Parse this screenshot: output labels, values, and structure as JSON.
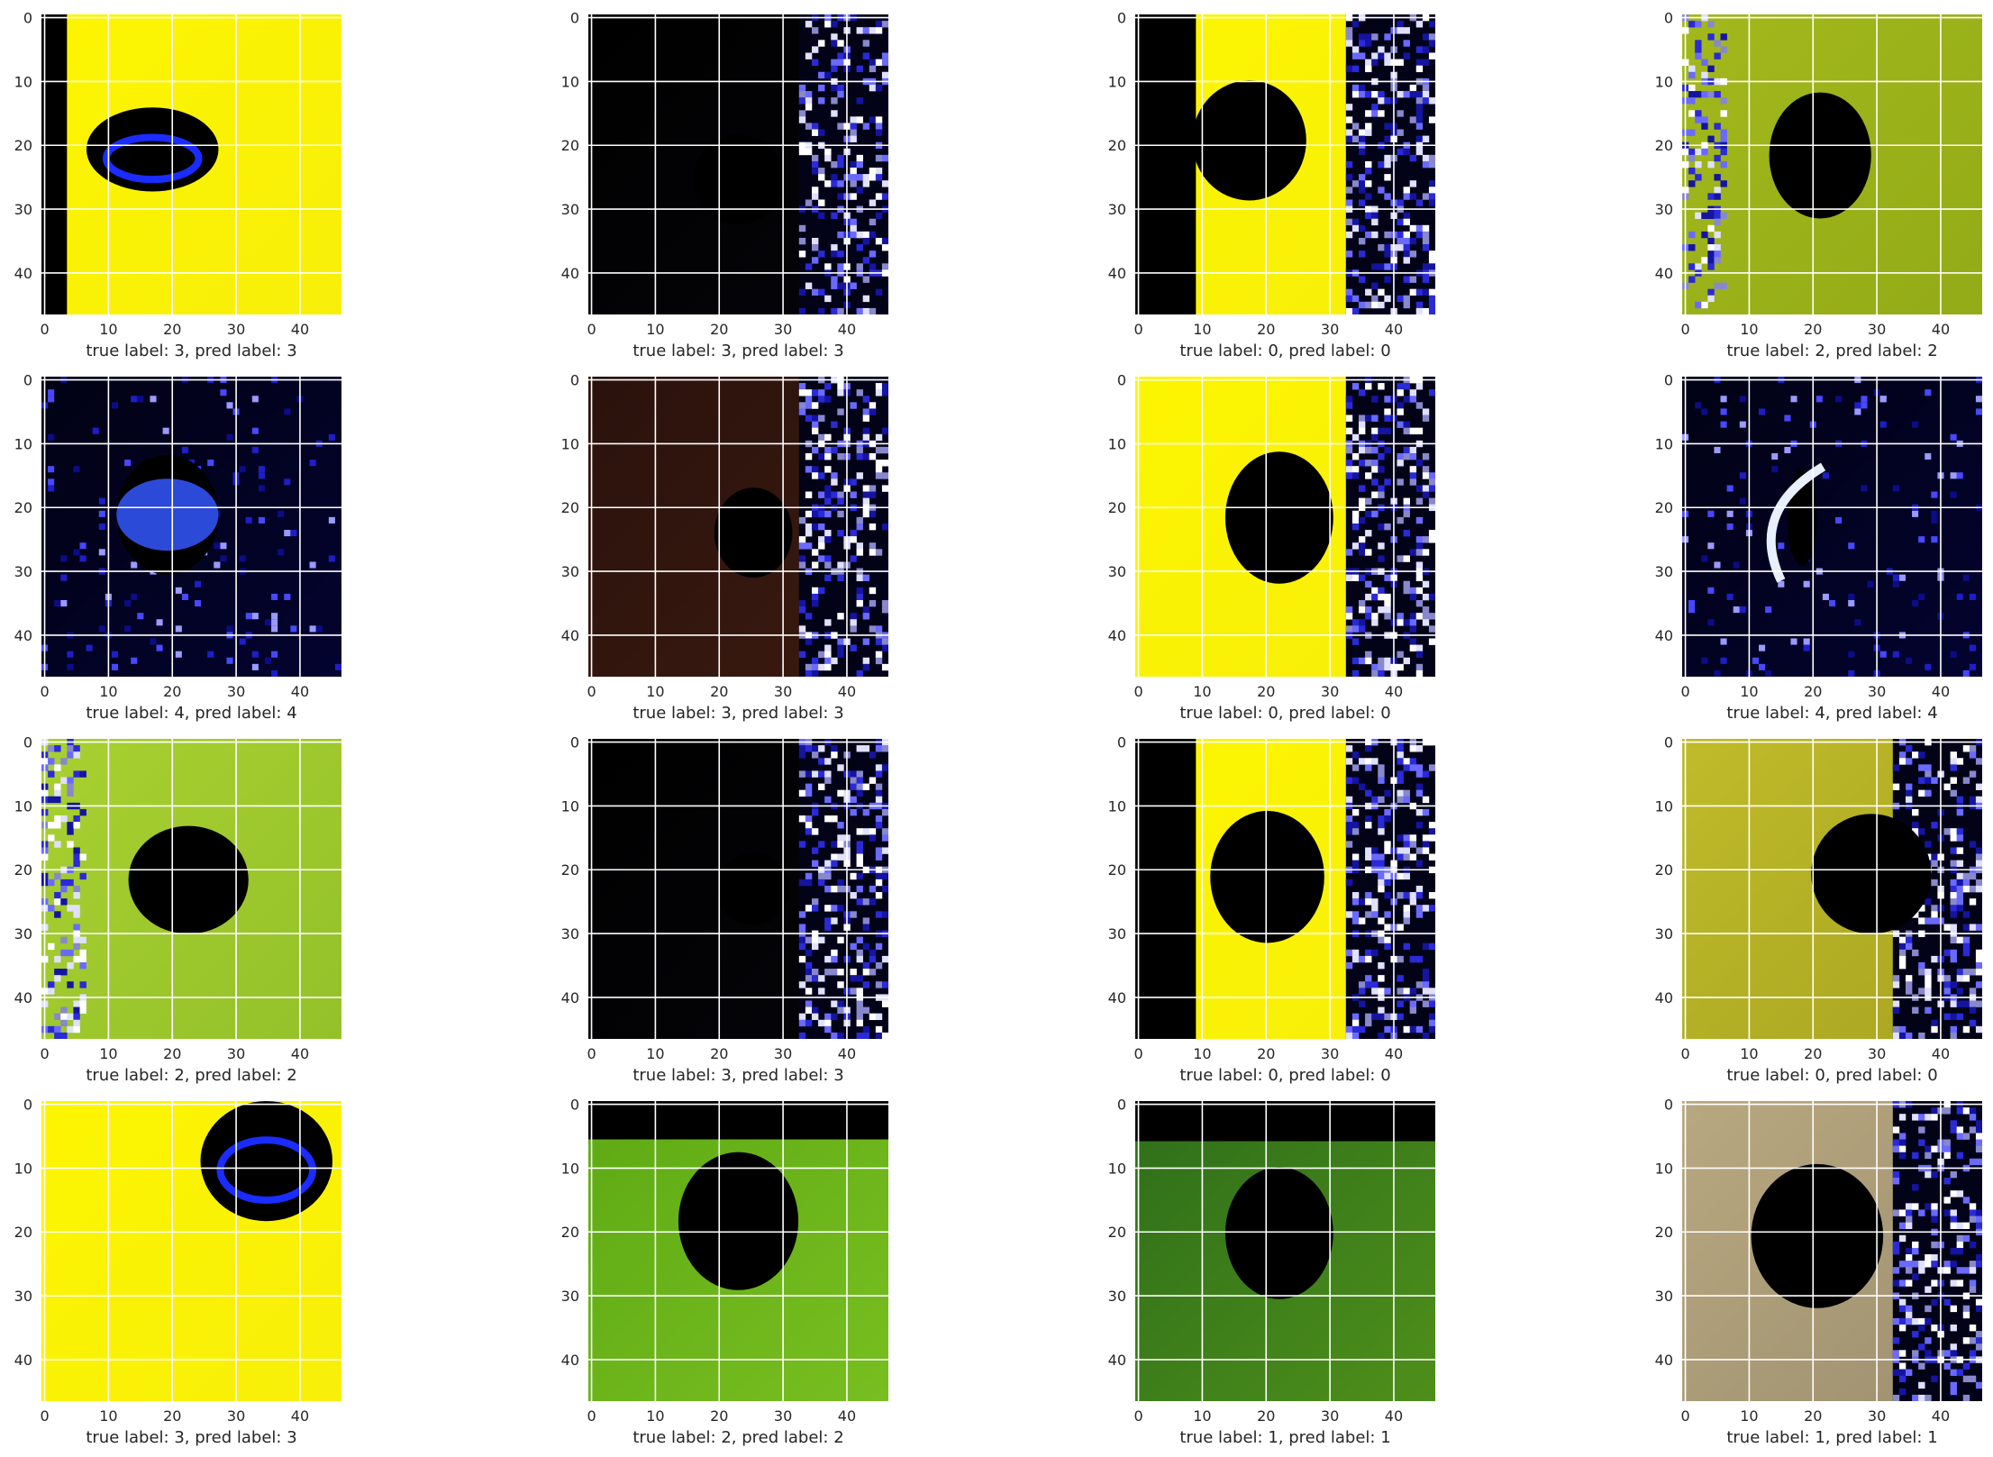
{
  "figure": {
    "rows": 4,
    "cols": 4,
    "panels": [
      {
        "true_label": 3,
        "pred_label": 3,
        "caption": "true label: 3, pred label: 3",
        "style": "yellow",
        "blob": [
          0.37,
          0.45,
          0.22,
          0.14
        ],
        "extra": "blueedge",
        "stripe": "left"
      },
      {
        "true_label": 3,
        "pred_label": 3,
        "caption": "true label: 3, pred label: 3",
        "style": "dark",
        "blob": [
          0.5,
          0.55,
          0.15,
          0.15
        ],
        "extra": "noise-right"
      },
      {
        "true_label": 0,
        "pred_label": 0,
        "caption": "true label: 0, pred label: 0",
        "style": "yellow",
        "blob": [
          0.38,
          0.42,
          0.19,
          0.2
        ],
        "extra": "noise-right",
        "stripe": "left-wide"
      },
      {
        "true_label": 2,
        "pred_label": 2,
        "caption": "true label: 2, pred label: 2",
        "style": "olive",
        "blob": [
          0.46,
          0.47,
          0.17,
          0.21
        ],
        "extra": "stripes-left"
      },
      {
        "true_label": 4,
        "pred_label": 4,
        "caption": "true label: 4, pred label: 4",
        "style": "navy",
        "blob": [
          0.42,
          0.46,
          0.17,
          0.2
        ],
        "extra": "bluefish"
      },
      {
        "true_label": 3,
        "pred_label": 3,
        "caption": "true label: 3, pred label: 3",
        "style": "brown",
        "blob": [
          0.55,
          0.52,
          0.13,
          0.15
        ],
        "extra": "noise-right"
      },
      {
        "true_label": 0,
        "pred_label": 0,
        "caption": "true label: 0, pred label: 0",
        "style": "yellow",
        "blob": [
          0.48,
          0.47,
          0.18,
          0.22
        ],
        "extra": "noise-right"
      },
      {
        "true_label": 4,
        "pred_label": 4,
        "caption": "true label: 4, pred label: 4",
        "style": "navy",
        "blob": [
          0.4,
          0.47,
          0.05,
          0.16
        ],
        "extra": "crescent"
      },
      {
        "true_label": 2,
        "pred_label": 2,
        "caption": "true label: 2, pred label: 2",
        "style": "green",
        "blob": [
          0.49,
          0.47,
          0.2,
          0.18
        ],
        "extra": "stripes-left"
      },
      {
        "true_label": 3,
        "pred_label": 3,
        "caption": "true label: 3, pred label: 3",
        "style": "dark",
        "blob": [
          0.55,
          0.5,
          0.12,
          0.12
        ],
        "extra": "noise-right"
      },
      {
        "true_label": 0,
        "pred_label": 0,
        "caption": "true label: 0, pred label: 0",
        "style": "yellow",
        "blob": [
          0.44,
          0.46,
          0.19,
          0.22
        ],
        "extra": "noise-right",
        "stripe": "left-wide"
      },
      {
        "true_label": 0,
        "pred_label": 0,
        "caption": "true label: 0, pred label: 0",
        "style": "ochre",
        "blob": [
          0.63,
          0.45,
          0.2,
          0.2
        ],
        "extra": "noise-right"
      },
      {
        "true_label": 3,
        "pred_label": 3,
        "caption": "true label: 3, pred label: 3",
        "style": "yellow",
        "blob": [
          0.75,
          0.2,
          0.22,
          0.2
        ],
        "extra": "blueedge"
      },
      {
        "true_label": 2,
        "pred_label": 2,
        "caption": "true label: 2, pred label: 2",
        "style": "greenbright",
        "blob": [
          0.5,
          0.4,
          0.2,
          0.23
        ],
        "extra": "topbar"
      },
      {
        "true_label": 1,
        "pred_label": 1,
        "caption": "true label: 1, pred label: 1",
        "style": "darkgreen",
        "blob": [
          0.48,
          0.44,
          0.18,
          0.22
        ],
        "extra": "topbar"
      },
      {
        "true_label": 1,
        "pred_label": 1,
        "caption": "true label: 1, pred label: 1",
        "style": "tan",
        "blob": [
          0.45,
          0.45,
          0.22,
          0.24
        ],
        "extra": "noise-right"
      }
    ]
  },
  "chart_data": {
    "type": "image-grid",
    "title": "",
    "x_ticks": [
      "0",
      "10",
      "20",
      "30",
      "40"
    ],
    "y_ticks": [
      "0",
      "10",
      "20",
      "30",
      "40"
    ],
    "image_size": [
      47,
      47
    ],
    "grid": true,
    "series": [
      {
        "true": [
          3,
          3,
          0,
          2,
          4,
          3,
          0,
          4,
          2,
          3,
          0,
          0,
          3,
          2,
          1,
          1
        ]
      },
      {
        "pred": [
          3,
          3,
          0,
          2,
          4,
          3,
          0,
          4,
          2,
          3,
          0,
          0,
          3,
          2,
          1,
          1
        ]
      }
    ]
  }
}
